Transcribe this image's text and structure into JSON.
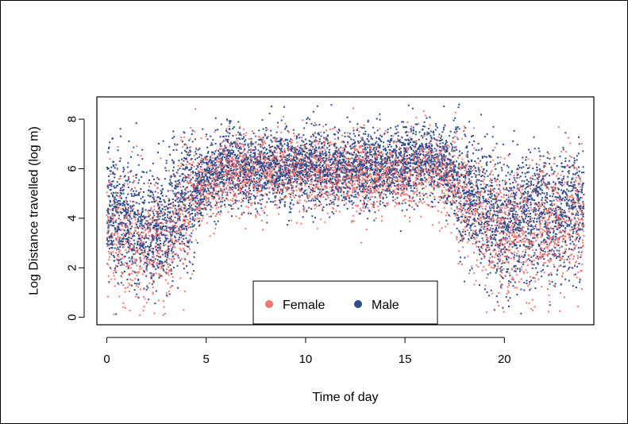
{
  "chart_data": {
    "type": "scatter",
    "title": "",
    "xlabel": "Time of day",
    "ylabel": "Log Distance travelled (log m)",
    "xlim": [
      -0.5,
      24.5
    ],
    "ylim": [
      -0.3,
      8.9
    ],
    "xticks": [
      0,
      5,
      10,
      15,
      20
    ],
    "yticks": [
      0,
      2,
      4,
      6,
      8
    ],
    "grid": false,
    "legend": {
      "position": "bottom-center",
      "entries": [
        "Female",
        "Male"
      ]
    },
    "series": [
      {
        "name": "Female",
        "color": "#F8766D",
        "description_profile": [
          {
            "x": 0,
            "y": 3.6
          },
          {
            "x": 1,
            "y": 3.2
          },
          {
            "x": 2,
            "y": 3.0
          },
          {
            "x": 3,
            "y": 3.3
          },
          {
            "x": 4,
            "y": 4.6
          },
          {
            "x": 5,
            "y": 5.4
          },
          {
            "x": 6,
            "y": 5.8
          },
          {
            "x": 8,
            "y": 5.9
          },
          {
            "x": 10,
            "y": 5.9
          },
          {
            "x": 12,
            "y": 5.8
          },
          {
            "x": 14,
            "y": 5.8
          },
          {
            "x": 16,
            "y": 5.9
          },
          {
            "x": 17,
            "y": 5.7
          },
          {
            "x": 18,
            "y": 4.9
          },
          {
            "x": 19,
            "y": 3.9
          },
          {
            "x": 20,
            "y": 3.4
          },
          {
            "x": 22,
            "y": 3.6
          },
          {
            "x": 24,
            "y": 3.9
          }
        ]
      },
      {
        "name": "Male",
        "color": "#2E4D8F",
        "description_profile": [
          {
            "x": 0,
            "y": 4.4
          },
          {
            "x": 1,
            "y": 3.9
          },
          {
            "x": 2,
            "y": 3.5
          },
          {
            "x": 3,
            "y": 3.6
          },
          {
            "x": 4,
            "y": 4.9
          },
          {
            "x": 5,
            "y": 5.7
          },
          {
            "x": 6,
            "y": 6.0
          },
          {
            "x": 8,
            "y": 6.1
          },
          {
            "x": 10,
            "y": 6.1
          },
          {
            "x": 12,
            "y": 6.0
          },
          {
            "x": 14,
            "y": 6.1
          },
          {
            "x": 16,
            "y": 6.4
          },
          {
            "x": 17,
            "y": 6.2
          },
          {
            "x": 18,
            "y": 5.3
          },
          {
            "x": 19,
            "y": 4.3
          },
          {
            "x": 20,
            "y": 4.0
          },
          {
            "x": 22,
            "y": 4.1
          },
          {
            "x": 24,
            "y": 4.5
          }
        ]
      }
    ]
  }
}
